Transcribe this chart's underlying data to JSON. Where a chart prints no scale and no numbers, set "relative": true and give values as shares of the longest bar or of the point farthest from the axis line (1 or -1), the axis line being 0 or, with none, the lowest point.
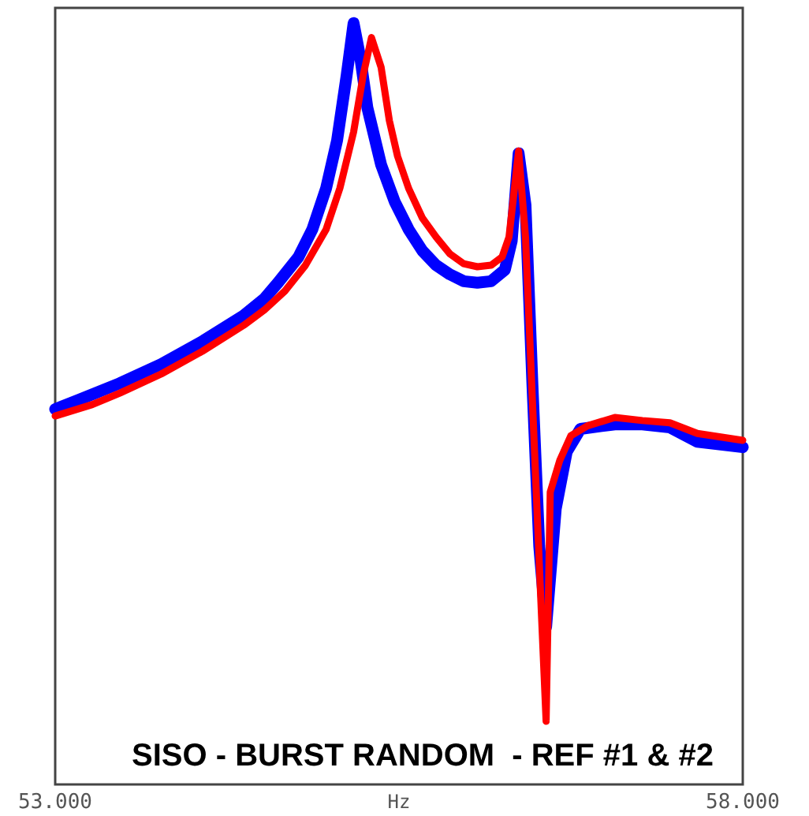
{
  "chart_data": {
    "type": "line",
    "title": "SISO - BURST RANDOM  - REF #1 & #2",
    "xlabel": "Hz",
    "relative": true,
    "xlim": [
      53,
      58
    ],
    "xticks": [
      {
        "value": 53,
        "label": "53.000"
      },
      {
        "value": 58,
        "label": "58.000"
      }
    ],
    "series": [
      {
        "color": "#0000ff",
        "x": [
          53.0,
          53.17,
          53.47,
          53.77,
          54.07,
          54.37,
          54.52,
          54.62,
          54.77,
          54.87,
          54.97,
          55.05,
          55.12,
          55.17,
          55.22,
          55.27,
          55.37,
          55.47,
          55.57,
          55.67,
          55.77,
          55.87,
          55.97,
          56.07,
          56.17,
          56.27,
          56.32,
          56.37,
          56.42,
          56.47,
          56.52,
          56.57,
          56.64,
          56.72,
          56.82,
          57.07,
          57.27,
          57.47,
          57.67,
          58.0
        ],
        "values": [
          0.493,
          0.505,
          0.527,
          0.552,
          0.582,
          0.616,
          0.638,
          0.659,
          0.693,
          0.729,
          0.783,
          0.846,
          0.932,
          1,
          0.953,
          0.889,
          0.814,
          0.765,
          0.729,
          0.701,
          0.682,
          0.67,
          0.661,
          0.659,
          0.661,
          0.676,
          0.714,
          0.829,
          0.761,
          0.527,
          0.313,
          0.207,
          0.362,
          0.437,
          0.467,
          0.473,
          0.473,
          0.469,
          0.45,
          0.443
        ]
      },
      {
        "color": "#ff0000",
        "x": [
          53.0,
          53.27,
          53.47,
          53.77,
          54.07,
          54.37,
          54.52,
          54.67,
          54.82,
          54.97,
          55.07,
          55.17,
          55.24,
          55.3,
          55.37,
          55.43,
          55.49,
          55.57,
          55.67,
          55.77,
          55.87,
          55.97,
          56.07,
          56.17,
          56.25,
          56.3,
          56.37,
          56.42,
          56.47,
          56.53,
          56.57,
          56.6,
          56.67,
          56.75,
          56.87,
          57.07,
          57.27,
          57.47,
          57.67,
          58.0
        ],
        "values": [
          0.484,
          0.499,
          0.514,
          0.539,
          0.569,
          0.603,
          0.623,
          0.648,
          0.682,
          0.729,
          0.783,
          0.857,
          0.932,
          0.981,
          0.942,
          0.872,
          0.825,
          0.783,
          0.744,
          0.719,
          0.697,
          0.684,
          0.68,
          0.682,
          0.693,
          0.719,
          0.832,
          0.719,
          0.505,
          0.249,
          0.083,
          0.384,
          0.426,
          0.458,
          0.471,
          0.482,
          0.478,
          0.475,
          0.461,
          0.452
        ]
      }
    ]
  }
}
